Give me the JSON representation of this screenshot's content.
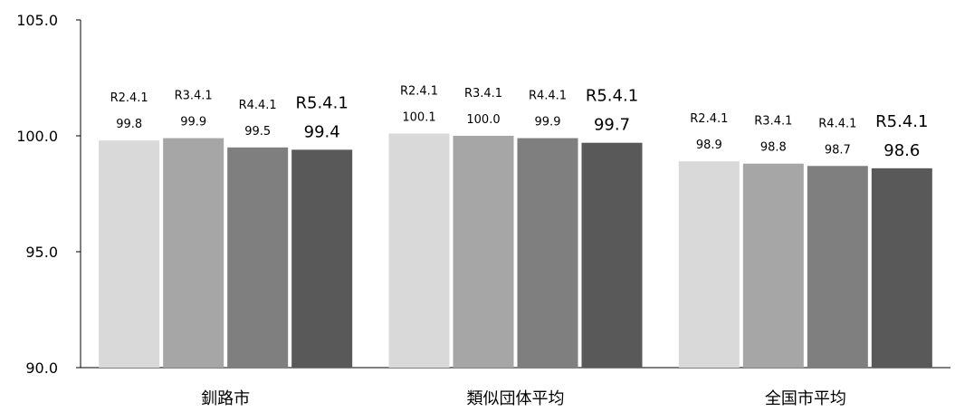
{
  "chart_data": {
    "type": "bar",
    "categories": [
      "釧路市",
      "類似団体平均",
      "全国市平均"
    ],
    "series": [
      {
        "name": "R2.4.1",
        "values": [
          99.8,
          100.1,
          98.9
        ],
        "color": "#d9d9d9"
      },
      {
        "name": "R3.4.1",
        "values": [
          99.9,
          100.0,
          98.8
        ],
        "color": "#a6a6a6"
      },
      {
        "name": "R4.4.1",
        "values": [
          99.5,
          99.9,
          98.7
        ],
        "color": "#7f7f7f"
      },
      {
        "name": "R5.4.1",
        "values": [
          99.4,
          99.7,
          98.6
        ],
        "color": "#595959"
      }
    ],
    "value_labels": [
      [
        "99.8",
        "100.1",
        "98.9"
      ],
      [
        "99.9",
        "100.0",
        "98.8"
      ],
      [
        "99.5",
        "99.9",
        "98.7"
      ],
      [
        "99.4",
        "99.7",
        "98.6"
      ]
    ],
    "ylim": [
      90.0,
      105.0
    ],
    "yticks": [
      "90.0",
      "95.0",
      "100.0",
      "105.0"
    ],
    "grid": false,
    "legend": "none"
  }
}
